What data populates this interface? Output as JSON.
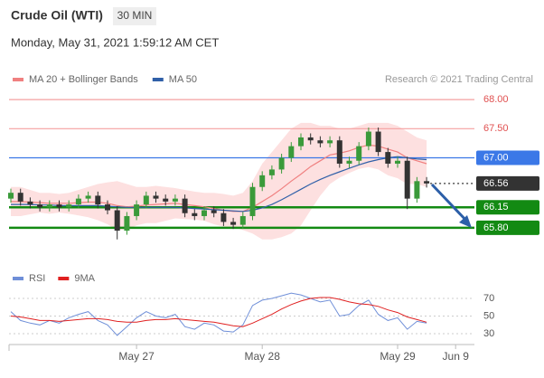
{
  "header": {
    "title": "Crude Oil (WTI)",
    "timeframe": "30 MIN",
    "datetime": "Monday, May 31, 2021 1:59:12 AM CET",
    "credit": "Research © 2021 Trading Central"
  },
  "chart_data": [
    {
      "type": "candlestick",
      "categories": [
        null,
        null,
        null,
        null,
        null,
        null,
        null,
        null,
        null,
        null,
        null,
        null,
        null,
        "May 27",
        null,
        null,
        null,
        null,
        null,
        null,
        null,
        null,
        null,
        null,
        null,
        null,
        "May 28",
        null,
        null,
        null,
        null,
        null,
        null,
        null,
        null,
        null,
        null,
        null,
        null,
        null,
        "May 29",
        null,
        null,
        null,
        null,
        null,
        "Jun 9",
        null
      ],
      "open": [
        66.3,
        66.4,
        66.25,
        66.2,
        66.15,
        66.2,
        66.15,
        66.2,
        66.3,
        66.35,
        66.2,
        66.1,
        65.75,
        66.0,
        66.2,
        66.35,
        66.3,
        66.25,
        66.3,
        66.05,
        66.0,
        66.1,
        66.05,
        65.9,
        65.85,
        66.0,
        66.5,
        66.7,
        66.8,
        67.0,
        67.2,
        67.35,
        67.3,
        67.25,
        67.3,
        66.9,
        66.95,
        67.2,
        67.45,
        67.1,
        66.9,
        66.95,
        66.3,
        66.6,
        null,
        null,
        null,
        null
      ],
      "high": [
        66.47,
        66.47,
        66.32,
        66.27,
        66.27,
        66.27,
        66.27,
        66.37,
        66.42,
        66.42,
        66.27,
        66.17,
        66.07,
        66.27,
        66.42,
        66.42,
        66.37,
        66.37,
        66.37,
        66.12,
        66.17,
        66.17,
        66.12,
        65.97,
        66.07,
        66.57,
        66.77,
        66.87,
        67.07,
        67.27,
        67.42,
        67.42,
        67.37,
        67.37,
        67.37,
        67.02,
        67.27,
        67.52,
        67.52,
        67.17,
        67.02,
        67.02,
        66.67,
        66.67,
        null,
        null,
        null,
        null
      ],
      "low": [
        66.23,
        66.18,
        66.13,
        66.08,
        66.08,
        66.08,
        66.08,
        66.13,
        66.23,
        66.13,
        66.03,
        65.6,
        65.68,
        65.93,
        66.13,
        66.23,
        66.18,
        66.18,
        65.98,
        65.93,
        65.93,
        65.98,
        65.83,
        65.78,
        65.78,
        65.93,
        66.43,
        66.63,
        66.73,
        66.93,
        67.13,
        67.23,
        67.18,
        67.18,
        66.83,
        66.83,
        66.88,
        67.13,
        67.03,
        66.83,
        66.83,
        66.12,
        66.23,
        66.49,
        null,
        null,
        null,
        null
      ],
      "close": [
        66.4,
        66.25,
        66.2,
        66.15,
        66.2,
        66.15,
        66.2,
        66.3,
        66.35,
        66.2,
        66.1,
        65.75,
        66.0,
        66.2,
        66.35,
        66.3,
        66.25,
        66.3,
        66.05,
        66.0,
        66.1,
        66.05,
        65.9,
        65.85,
        66.0,
        66.5,
        66.7,
        66.8,
        67.0,
        67.2,
        67.35,
        67.3,
        67.25,
        67.3,
        66.9,
        66.95,
        67.2,
        67.45,
        67.1,
        66.9,
        66.95,
        66.3,
        66.6,
        66.56,
        null,
        null,
        null,
        null
      ],
      "up_color": "#3a9a3a",
      "down_color": "#333333",
      "series": [
        {
          "name": "MA 20 + Bollinger Bands",
          "color": "#f08080",
          "band_color": "#fde0e0",
          "values": [
            66.25,
            66.25,
            66.24,
            66.23,
            66.22,
            66.22,
            66.22,
            66.23,
            66.24,
            66.24,
            66.22,
            66.18,
            66.16,
            66.17,
            66.19,
            66.2,
            66.21,
            66.22,
            66.2,
            66.18,
            66.16,
            66.13,
            66.1,
            66.08,
            66.08,
            66.15,
            66.25,
            66.35,
            66.47,
            66.6,
            66.72,
            66.85,
            66.95,
            67.05,
            67.08,
            67.12,
            67.18,
            67.22,
            67.2,
            67.15,
            67.1,
            67.0,
            66.95,
            66.9,
            null,
            null,
            null,
            null
          ],
          "upper": [
            66.5,
            66.5,
            66.45,
            66.4,
            66.4,
            66.38,
            66.4,
            66.45,
            66.5,
            66.55,
            66.58,
            66.6,
            66.55,
            66.5,
            66.5,
            66.52,
            66.5,
            66.48,
            66.45,
            66.42,
            66.4,
            66.4,
            66.38,
            66.35,
            66.4,
            66.6,
            66.9,
            67.1,
            67.3,
            67.5,
            67.6,
            67.6,
            67.55,
            67.55,
            67.5,
            67.5,
            67.55,
            67.6,
            67.6,
            67.6,
            67.55,
            67.45,
            67.35,
            67.3,
            null,
            null,
            null,
            null
          ],
          "lower": [
            66.0,
            66.0,
            66.03,
            66.06,
            66.04,
            66.06,
            66.04,
            66.01,
            65.98,
            65.93,
            65.86,
            65.76,
            65.77,
            65.84,
            65.88,
            65.88,
            65.92,
            65.96,
            65.95,
            65.94,
            65.92,
            65.86,
            65.82,
            65.81,
            65.76,
            65.7,
            65.6,
            65.6,
            65.64,
            65.7,
            65.84,
            66.1,
            66.35,
            66.55,
            66.66,
            66.74,
            66.81,
            66.84,
            66.8,
            66.7,
            66.65,
            66.55,
            66.55,
            66.5,
            null,
            null,
            null,
            null
          ]
        },
        {
          "name": "MA 50",
          "color": "#3060a8",
          "values": [
            66.2,
            66.2,
            66.2,
            66.19,
            66.19,
            66.18,
            66.18,
            66.18,
            66.18,
            66.18,
            66.17,
            66.16,
            66.15,
            66.15,
            66.15,
            66.15,
            66.15,
            66.15,
            66.14,
            66.13,
            66.12,
            66.11,
            66.1,
            66.09,
            66.08,
            66.1,
            66.14,
            66.2,
            66.28,
            66.37,
            66.46,
            66.55,
            66.63,
            66.7,
            66.76,
            66.82,
            66.88,
            66.93,
            66.97,
            67.0,
            67.02,
            67.0,
            66.98,
            66.97,
            null,
            null,
            null,
            null
          ]
        }
      ],
      "levels": [
        {
          "value": 68,
          "label": "68.00",
          "color": "#f4a0a0",
          "style": "plain"
        },
        {
          "value": 67.5,
          "label": "67.50",
          "color": "#f4a0a0",
          "style": "plain"
        },
        {
          "value": 67,
          "label": "67.00",
          "color": "#3b78e7",
          "style": "box"
        },
        {
          "value": 66.56,
          "label": "66.56",
          "color": "#333333",
          "style": "current"
        },
        {
          "value": 66.15,
          "label": "66.15",
          "color": "#138a13",
          "style": "box"
        },
        {
          "value": 65.8,
          "label": "65.80",
          "color": "#138a13",
          "style": "box"
        }
      ],
      "ylim": [
        65.2,
        68.25
      ]
    },
    {
      "type": "line",
      "series": [
        {
          "name": "RSI",
          "color": "#6f8fd8",
          "values": [
            55,
            45,
            42,
            40,
            45,
            42,
            48,
            52,
            55,
            45,
            40,
            28,
            38,
            48,
            55,
            50,
            48,
            52,
            38,
            35,
            42,
            40,
            33,
            32,
            40,
            62,
            68,
            70,
            73,
            76,
            74,
            70,
            66,
            68,
            50,
            52,
            62,
            68,
            52,
            45,
            48,
            35,
            44,
            42,
            null,
            null,
            null,
            null
          ]
        },
        {
          "name": "9MA",
          "color": "#e02020",
          "values": [
            50,
            49,
            47,
            45,
            45,
            44,
            45,
            46,
            47,
            47,
            46,
            44,
            43,
            43,
            45,
            46,
            46,
            47,
            46,
            45,
            44,
            43,
            41,
            39,
            38,
            42,
            47,
            52,
            58,
            63,
            67,
            70,
            71,
            71,
            69,
            66,
            64,
            63,
            61,
            57,
            54,
            49,
            46,
            43,
            null,
            null,
            null,
            null
          ]
        }
      ],
      "ylim": [
        20,
        80
      ],
      "yticks": [
        30,
        50,
        70
      ],
      "grid": true
    }
  ]
}
